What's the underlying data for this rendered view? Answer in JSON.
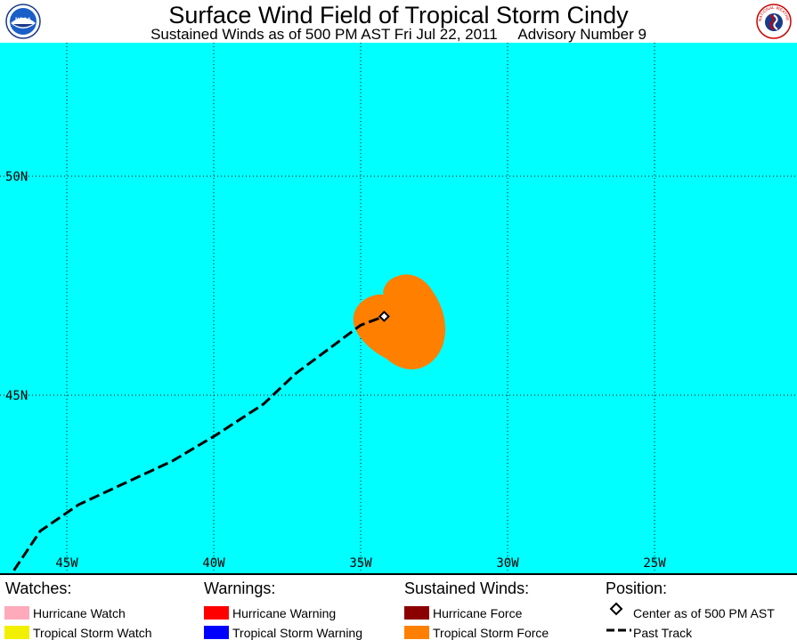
{
  "header": {
    "title": "Surface Wind Field of Tropical Storm Cindy",
    "subtitle": "Sustained Winds as of 500 PM AST Fri Jul 22, 2011     Advisory Number 9",
    "logo_left_text": "NOAA",
    "logo_right_text": "NATIONAL WEATHER SERVICE"
  },
  "map": {
    "background_color": "#00ffff",
    "lon_range": [
      -47,
      -28
    ],
    "lat_range": [
      41.0,
      53.1
    ],
    "lat_labels": [
      {
        "lat": 50,
        "label": "50N"
      },
      {
        "lat": 45,
        "label": "45N"
      }
    ],
    "lon_labels": [
      {
        "lon": -45,
        "label": "45W"
      },
      {
        "lon": -40,
        "label": "40W"
      },
      {
        "lon": -35,
        "label": "35W"
      },
      {
        "lon": -30,
        "label": "30W"
      },
      {
        "lon": -25,
        "label": "25W"
      }
    ],
    "center": {
      "lon": -34.2,
      "lat": 46.8
    },
    "past_track": [
      [
        -46.8,
        41.0
      ],
      [
        -45.9,
        41.9
      ],
      [
        -44.6,
        42.5
      ],
      [
        -43.0,
        43.0
      ],
      [
        -41.4,
        43.5
      ],
      [
        -39.9,
        44.1
      ],
      [
        -38.3,
        44.8
      ],
      [
        -37.2,
        45.5
      ],
      [
        -36.0,
        46.1
      ],
      [
        -35.0,
        46.6
      ],
      [
        -34.2,
        46.8
      ]
    ],
    "tropical_storm_force_color": "#ff8000"
  },
  "legend": {
    "watches": {
      "heading": "Watches:",
      "items": [
        {
          "label": "Hurricane Watch",
          "color": "#ffaabb"
        },
        {
          "label": "Tropical Storm Watch",
          "color": "#f0f000"
        }
      ]
    },
    "warnings": {
      "heading": "Warnings:",
      "items": [
        {
          "label": "Hurricane Warning",
          "color": "#ff0000"
        },
        {
          "label": "Tropical Storm Warning",
          "color": "#0000ff"
        }
      ]
    },
    "sustained_winds": {
      "heading": "Sustained Winds:",
      "items": [
        {
          "label": "Hurricane Force",
          "color": "#8b0000"
        },
        {
          "label": "Tropical Storm Force",
          "color": "#ff8000"
        }
      ]
    },
    "position": {
      "heading": "Position:",
      "items": [
        {
          "label": "Center as of 500 PM AST"
        },
        {
          "label": "Past Track"
        }
      ]
    }
  }
}
